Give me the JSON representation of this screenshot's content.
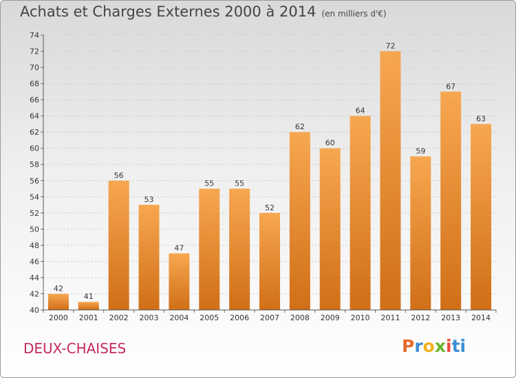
{
  "header": {
    "title": "Achats et Charges Externes 2000 à 2014",
    "subtitle": "(en milliers d'€)"
  },
  "footer": {
    "commune": "DEUX-CHAISES",
    "logo": [
      "P",
      "r",
      "o",
      "x",
      "i",
      "ti"
    ]
  },
  "colors": {
    "bar_light": "#f7a750",
    "bar_dark": "#d06f17",
    "commune": "#c5285c"
  },
  "chart_data": {
    "type": "bar",
    "title": "Achats et Charges Externes 2000 à 2014",
    "subtitle": "(en milliers d'€)",
    "xlabel": "",
    "ylabel": "",
    "categories": [
      "2000",
      "2001",
      "2002",
      "2003",
      "2004",
      "2005",
      "2006",
      "2007",
      "2008",
      "2009",
      "2010",
      "2011",
      "2012",
      "2013",
      "2014"
    ],
    "values": [
      42,
      41,
      56,
      53,
      47,
      55,
      55,
      52,
      62,
      60,
      64,
      72,
      59,
      67,
      63
    ],
    "ylim": [
      40,
      74
    ],
    "yticks": [
      40,
      42,
      44,
      46,
      48,
      50,
      52,
      54,
      56,
      58,
      60,
      62,
      64,
      66,
      68,
      70,
      72,
      74
    ],
    "grid": true,
    "legend": "none"
  }
}
